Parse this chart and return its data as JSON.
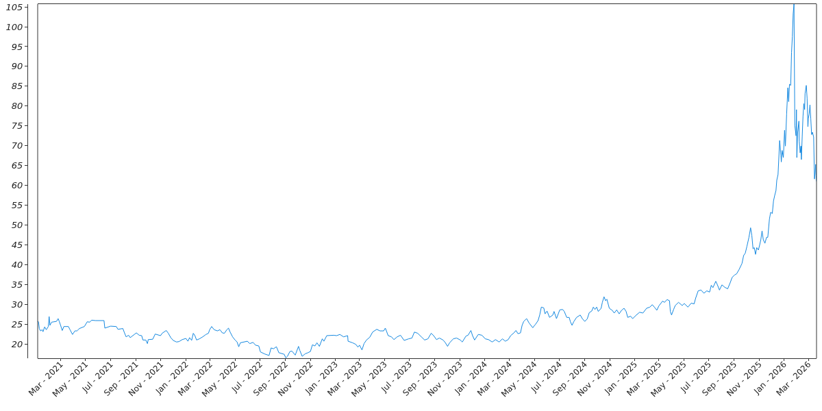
{
  "chart_data": {
    "type": "line",
    "x": [
      "2021-01-04",
      "2021-01-06",
      "2021-01-08",
      "2021-01-11",
      "2021-01-15",
      "2021-01-17",
      "2021-01-21",
      "2021-01-25",
      "2021-01-30",
      "2021-02-01",
      "2021-02-03",
      "2021-02-07",
      "2021-02-13",
      "2021-02-19",
      "2021-02-23",
      "2021-02-26",
      "2021-03-01",
      "2021-03-05",
      "2021-03-09",
      "2021-03-20",
      "2021-03-24",
      "2021-03-30",
      "2021-04-05",
      "2021-04-10",
      "2021-04-16",
      "2021-04-28",
      "2021-05-05",
      "2021-05-11",
      "2021-05-16",
      "2021-05-25",
      "2021-06-15",
      "2021-06-17",
      "2021-07-01",
      "2021-07-15",
      "2021-07-19",
      "2021-07-31",
      "2021-08-04",
      "2021-08-08",
      "2021-08-14",
      "2021-08-18",
      "2021-08-28",
      "2021-09-02",
      "2021-09-09",
      "2021-09-15",
      "2021-09-18",
      "2021-09-25",
      "2021-09-29",
      "2021-10-01",
      "2021-10-12",
      "2021-10-18",
      "2021-10-31",
      "2021-11-04",
      "2021-11-14",
      "2021-11-19",
      "2021-11-25",
      "2021-12-01",
      "2021-12-09",
      "2021-12-15",
      "2021-12-23",
      "2022-01-01",
      "2022-01-06",
      "2022-01-10",
      "2022-01-15",
      "2022-01-19",
      "2022-01-23",
      "2022-01-27",
      "2022-02-03",
      "2022-02-11",
      "2022-02-19",
      "2022-02-25",
      "2022-02-28",
      "2022-03-05",
      "2022-03-11",
      "2022-03-19",
      "2022-03-25",
      "2022-03-31",
      "2022-04-05",
      "2022-04-11",
      "2022-04-15",
      "2022-04-19",
      "2022-04-25",
      "2022-05-01",
      "2022-05-06",
      "2022-05-10",
      "2022-05-14",
      "2022-05-31",
      "2022-06-06",
      "2022-06-14",
      "2022-06-20",
      "2022-06-28",
      "2022-07-02",
      "2022-07-12",
      "2022-07-23",
      "2022-07-28",
      "2022-08-03",
      "2022-08-10",
      "2022-08-16",
      "2022-08-29",
      "2022-09-02",
      "2022-09-06",
      "2022-09-12",
      "2022-09-17",
      "2022-09-25",
      "2022-10-03",
      "2022-10-06",
      "2022-10-12",
      "2022-10-19",
      "2022-10-26",
      "2022-11-01",
      "2022-11-06",
      "2022-11-12",
      "2022-11-17",
      "2022-11-23",
      "2022-11-30",
      "2022-12-04",
      "2022-12-11",
      "2022-12-28",
      "2023-01-04",
      "2023-01-12",
      "2023-01-21",
      "2023-01-31",
      "2023-02-01",
      "2023-02-12",
      "2023-02-20",
      "2023-02-25",
      "2023-03-01",
      "2023-03-07",
      "2023-03-12",
      "2023-03-18",
      "2023-03-26",
      "2023-04-02",
      "2023-04-12",
      "2023-04-20",
      "2023-04-29",
      "2023-05-03",
      "2023-05-10",
      "2023-05-18",
      "2023-05-24",
      "2023-06-01",
      "2023-06-09",
      "2023-06-18",
      "2023-06-29",
      "2023-07-07",
      "2023-07-13",
      "2023-07-21",
      "2023-07-30",
      "2023-08-07",
      "2023-08-15",
      "2023-08-23",
      "2023-08-29",
      "2023-09-05",
      "2023-09-12",
      "2023-09-21",
      "2023-09-26",
      "2023-10-02",
      "2023-10-07",
      "2023-10-16",
      "2023-10-24",
      "2023-11-02",
      "2023-11-07",
      "2023-11-16",
      "2023-11-21",
      "2023-11-28",
      "2023-12-02",
      "2023-12-07",
      "2023-12-16",
      "2023-12-25",
      "2024-01-02",
      "2024-01-10",
      "2024-01-19",
      "2024-01-27",
      "2024-02-05",
      "2024-02-13",
      "2024-02-20",
      "2024-02-27",
      "2024-03-04",
      "2024-03-12",
      "2024-03-17",
      "2024-03-22",
      "2024-03-28",
      "2024-04-01",
      "2024-04-05",
      "2024-04-12",
      "2024-04-18",
      "2024-04-27",
      "2024-05-04",
      "2024-05-10",
      "2024-05-14",
      "2024-05-18",
      "2024-05-24",
      "2024-05-27",
      "2024-06-01",
      "2024-06-07",
      "2024-06-15",
      "2024-06-18",
      "2024-06-24",
      "2024-07-02",
      "2024-07-09",
      "2024-07-13",
      "2024-07-19",
      "2024-07-25",
      "2024-07-28",
      "2024-08-01",
      "2024-08-05",
      "2024-08-12",
      "2024-08-21",
      "2024-08-26",
      "2024-09-01",
      "2024-09-07",
      "2024-09-12",
      "2024-09-18",
      "2024-09-22",
      "2024-09-26",
      "2024-09-30",
      "2024-10-04",
      "2024-10-11",
      "2024-10-14",
      "2024-10-18",
      "2024-10-22",
      "2024-10-25",
      "2024-10-31",
      "2024-11-07",
      "2024-11-12",
      "2024-11-18",
      "2024-11-24",
      "2024-11-30",
      "2024-12-06",
      "2024-12-11",
      "2024-12-15",
      "2024-12-22",
      "2024-12-27",
      "2025-01-05",
      "2025-01-13",
      "2025-01-21",
      "2025-01-30",
      "2025-02-07",
      "2025-02-13",
      "2025-02-18",
      "2025-02-24",
      "2025-03-01",
      "2025-03-10",
      "2025-03-15",
      "2025-03-21",
      "2025-03-27",
      "2025-03-29",
      "2025-04-01",
      "2025-04-06",
      "2025-04-10",
      "2025-04-18",
      "2025-04-27",
      "2025-05-02",
      "2025-05-11",
      "2025-05-19",
      "2025-05-26",
      "2025-05-30",
      "2025-06-05",
      "2025-06-12",
      "2025-06-19",
      "2025-06-26",
      "2025-07-03",
      "2025-07-07",
      "2025-07-11",
      "2025-07-18",
      "2025-07-22",
      "2025-07-27",
      "2025-08-02",
      "2025-08-09",
      "2025-08-16",
      "2025-08-22",
      "2025-08-27",
      "2025-09-02",
      "2025-09-07",
      "2025-09-13",
      "2025-09-20",
      "2025-09-24",
      "2025-09-28",
      "2025-10-02",
      "2025-10-07",
      "2025-10-11",
      "2025-10-14",
      "2025-10-17",
      "2025-10-20",
      "2025-10-23",
      "2025-10-26",
      "2025-10-30",
      "2025-11-02",
      "2025-11-05",
      "2025-11-08",
      "2025-11-11",
      "2025-11-15",
      "2025-11-19",
      "2025-11-22",
      "2025-11-26",
      "2025-11-29",
      "2025-12-03",
      "2025-12-06",
      "2025-12-09",
      "2025-12-12",
      "2025-12-14",
      "2025-12-17",
      "2025-12-21",
      "2025-12-24",
      "2025-12-25",
      "2025-12-27",
      "2025-12-30",
      "2026-01-02",
      "2026-01-04",
      "2026-01-07",
      "2026-01-10",
      "2026-01-12",
      "2026-01-14",
      "2026-01-17",
      "2026-01-19",
      "2026-01-21",
      "2026-01-23",
      "2026-01-25",
      "2026-01-27",
      "2026-01-30",
      "2026-01-31",
      "2026-02-01",
      "2026-02-03",
      "2026-02-06",
      "2026-02-07",
      "2026-02-09",
      "2026-02-11",
      "2026-02-12",
      "2026-02-14",
      "2026-02-16",
      "2026-02-18",
      "2026-02-20",
      "2026-02-21",
      "2026-02-24",
      "2026-02-26",
      "2026-02-28",
      "2026-03-01",
      "2026-03-03",
      "2026-03-05",
      "2026-03-07",
      "2026-03-09",
      "2026-03-11",
      "2026-03-14",
      "2026-03-16",
      "2026-03-17",
      "2026-03-19",
      "2026-03-20",
      "2026-03-21"
    ],
    "series": [
      {
        "color": "#1488e0",
        "values": [
          25.7,
          25.6,
          23.9,
          23.3,
          23.6,
          23.1,
          24.3,
          23.6,
          24.4,
          26.9,
          24.7,
          25.5,
          25.6,
          25.7,
          26.4,
          25.6,
          24.7,
          23.4,
          24.4,
          24.4,
          23.6,
          22.4,
          23.3,
          23.3,
          23.9,
          24.4,
          25.6,
          25.5,
          26.0,
          25.9,
          25.9,
          24.0,
          24.5,
          24.4,
          23.7,
          23.9,
          22.8,
          21.8,
          22.2,
          21.6,
          22.4,
          22.8,
          22.2,
          22.1,
          21.0,
          21.0,
          20.1,
          21.1,
          21.2,
          22.5,
          22.1,
          22.7,
          23.4,
          22.7,
          21.6,
          20.9,
          20.5,
          20.6,
          21.1,
          21.4,
          20.7,
          21.6,
          20.9,
          22.7,
          22.1,
          21.0,
          21.3,
          21.8,
          22.4,
          22.7,
          23.6,
          24.4,
          23.6,
          23.3,
          23.6,
          22.8,
          22.7,
          23.6,
          24.0,
          23.0,
          21.8,
          21.0,
          20.5,
          19.3,
          20.3,
          20.7,
          20.1,
          20.4,
          19.7,
          19.5,
          18.0,
          17.5,
          17.1,
          19.0,
          18.8,
          19.3,
          17.8,
          17.4,
          16.5,
          16.9,
          18.1,
          18.2,
          17.2,
          19.4,
          18.4,
          16.9,
          17.5,
          17.8,
          18.1,
          19.8,
          19.5,
          20.3,
          19.4,
          21.3,
          20.7,
          22.1,
          22.2,
          22.1,
          22.4,
          21.8,
          22.1,
          20.7,
          20.3,
          19.9,
          19.2,
          19.7,
          18.5,
          20.1,
          21.0,
          21.7,
          23.0,
          23.7,
          23.3,
          23.3,
          24.0,
          22.1,
          21.8,
          21.1,
          21.8,
          22.2,
          20.9,
          21.3,
          21.5,
          23.0,
          22.7,
          21.8,
          21.0,
          21.3,
          22.7,
          22.1,
          21.1,
          21.5,
          21.0,
          20.4,
          19.4,
          20.3,
          21.3,
          21.5,
          21.0,
          20.5,
          22.0,
          22.2,
          23.4,
          22.1,
          21.0,
          22.4,
          22.2,
          21.3,
          21.1,
          20.5,
          21.1,
          20.5,
          21.3,
          20.7,
          21.1,
          22.1,
          22.8,
          23.4,
          22.6,
          22.8,
          24.7,
          25.7,
          26.4,
          25.3,
          24.1,
          25.0,
          25.9,
          27.3,
          29.3,
          29.1,
          27.6,
          28.3,
          26.7,
          27.3,
          28.2,
          26.4,
          28.6,
          28.7,
          28.2,
          26.7,
          26.7,
          25.6,
          24.7,
          25.6,
          26.7,
          27.3,
          26.4,
          25.7,
          26.3,
          27.9,
          28.3,
          29.3,
          28.7,
          29.3,
          28.2,
          29.0,
          30.5,
          31.9,
          30.9,
          31.3,
          29.0,
          28.5,
          27.8,
          28.6,
          27.6,
          28.5,
          29.0,
          28.2,
          26.7,
          27.0,
          26.4,
          27.3,
          28.0,
          27.8,
          29.0,
          29.3,
          29.9,
          29.3,
          28.5,
          29.6,
          30.8,
          30.5,
          31.2,
          30.9,
          28.2,
          27.3,
          28.7,
          29.7,
          30.5,
          29.7,
          30.2,
          29.3,
          30.3,
          30.1,
          31.6,
          33.4,
          33.6,
          32.8,
          33.4,
          33.1,
          34.8,
          34.2,
          35.8,
          34.9,
          33.6,
          34.9,
          34.3,
          33.9,
          35.4,
          36.8,
          37.4,
          37.7,
          38.8,
          40.3,
          42.3,
          42.9,
          44.6,
          46.9,
          49.3,
          47.4,
          44.0,
          44.3,
          42.6,
          44.3,
          43.7,
          44.9,
          46.3,
          48.5,
          46.3,
          45.4,
          46.9,
          46.9,
          51.5,
          53.2,
          52.9,
          56.1,
          57.5,
          58.7,
          61.3,
          62.7,
          71.3,
          67.6,
          65.9,
          68.8,
          67.0,
          73.9,
          69.9,
          78.0,
          84.6,
          81.1,
          85.5,
          85.2,
          93.5,
          97.5,
          103.3,
          105.7,
          75.1,
          72.5,
          79.1,
          67.0,
          73.4,
          76.2,
          71.1,
          68.2,
          69.9,
          66.5,
          72.2,
          77.4,
          80.6,
          79.1,
          83.1,
          85.2,
          82.0,
          74.8,
          76.8,
          78.0,
          80.3,
          76.8,
          72.8,
          73.4,
          72.2,
          61.6,
          62.7,
          65.3,
          62.4,
          61.0
        ]
      }
    ],
    "xlim": [
      "2021-01-04",
      "2026-03-21"
    ],
    "xticks": [
      {
        "value": "2021-03-01",
        "label": "Mar - 2021"
      },
      {
        "value": "2021-05-01",
        "label": "May - 2021"
      },
      {
        "value": "2021-07-01",
        "label": "Jul - 2021"
      },
      {
        "value": "2021-09-01",
        "label": "Sep - 2021"
      },
      {
        "value": "2021-11-01",
        "label": "Nov - 2021"
      },
      {
        "value": "2022-01-01",
        "label": "Jan - 2022"
      },
      {
        "value": "2022-03-01",
        "label": "Mar - 2022"
      },
      {
        "value": "2022-05-01",
        "label": "May - 2022"
      },
      {
        "value": "2022-07-01",
        "label": "Jul - 2022"
      },
      {
        "value": "2022-09-01",
        "label": "Sep - 2022"
      },
      {
        "value": "2022-11-01",
        "label": "Nov - 2022"
      },
      {
        "value": "2023-01-01",
        "label": "Jan - 2023"
      },
      {
        "value": "2023-03-01",
        "label": "Mar - 2023"
      },
      {
        "value": "2023-05-01",
        "label": "May - 2023"
      },
      {
        "value": "2023-07-01",
        "label": "Jul - 2023"
      },
      {
        "value": "2023-09-01",
        "label": "Sep - 2023"
      },
      {
        "value": "2023-11-01",
        "label": "Nov - 2023"
      },
      {
        "value": "2024-01-01",
        "label": "Jan - 2024"
      },
      {
        "value": "2024-03-01",
        "label": "Mar - 2024"
      },
      {
        "value": "2024-05-01",
        "label": "May - 2024"
      },
      {
        "value": "2024-07-01",
        "label": "Jul - 2024"
      },
      {
        "value": "2024-09-01",
        "label": "Sep - 2024"
      },
      {
        "value": "2024-11-01",
        "label": "Nov - 2024"
      },
      {
        "value": "2025-01-01",
        "label": "Jan - 2025"
      },
      {
        "value": "2025-03-01",
        "label": "Mar - 2025"
      },
      {
        "value": "2025-05-01",
        "label": "May - 2025"
      },
      {
        "value": "2025-07-01",
        "label": "Jul - 2025"
      },
      {
        "value": "2025-09-01",
        "label": "Sep - 2025"
      },
      {
        "value": "2025-11-01",
        "label": "Nov - 2025"
      },
      {
        "value": "2026-01-01",
        "label": "Jan - 2026"
      },
      {
        "value": "2026-03-01",
        "label": "Mar - 2026"
      }
    ],
    "ylim": [
      16.4,
      105.7
    ],
    "yticks": [
      20,
      25,
      30,
      35,
      40,
      45,
      50,
      55,
      60,
      65,
      70,
      75,
      80,
      85,
      90,
      95,
      100,
      105
    ],
    "grid": false,
    "marker": "none",
    "line_style": "solid"
  }
}
